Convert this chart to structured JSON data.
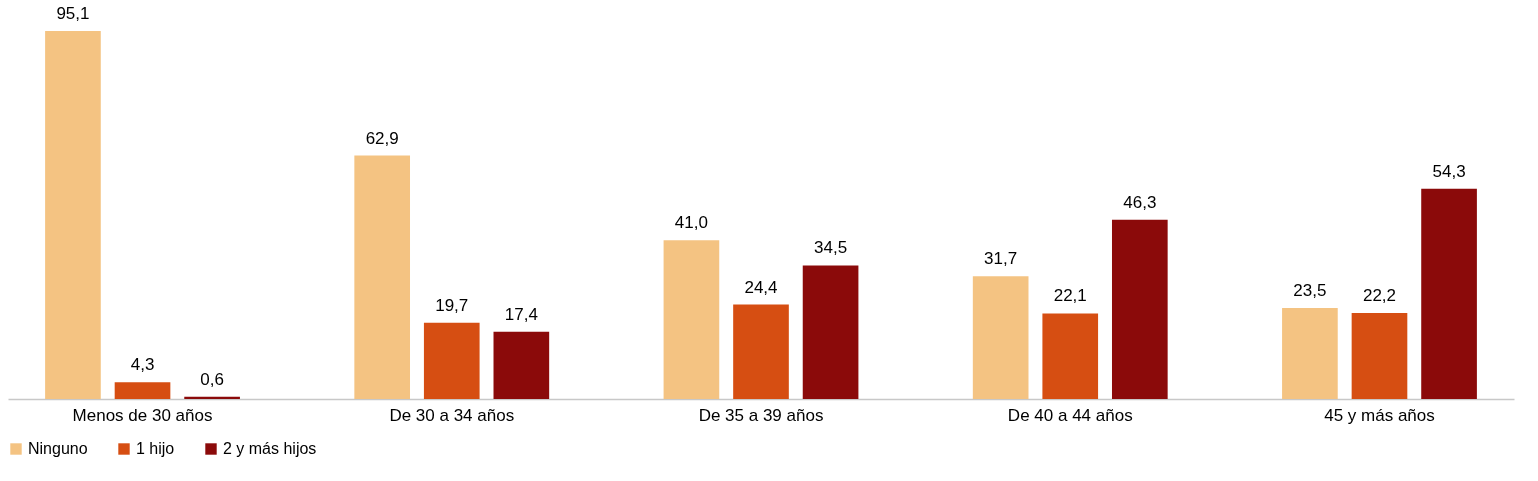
{
  "chart_data": {
    "type": "bar",
    "categories": [
      "Menos de 30 años",
      "De 30 a 34 años",
      "De 35 a 39 años",
      "De 40 a 44 años",
      "45 y más años"
    ],
    "series": [
      {
        "name": "Ninguno",
        "color": "#f4c382",
        "values": [
          95.1,
          62.9,
          41.0,
          31.7,
          23.5
        ],
        "value_labels": [
          "95,1",
          "62,9",
          "41,0",
          "31,7",
          "23,5"
        ]
      },
      {
        "name": "1 hijo",
        "color": "#d64e12",
        "values": [
          4.3,
          19.7,
          24.4,
          22.1,
          22.2
        ],
        "value_labels": [
          "4,3",
          "19,7",
          "24,4",
          "22,1",
          "22,2"
        ]
      },
      {
        "name": "2 y más hijos",
        "color": "#8b0a0a",
        "values": [
          0.6,
          17.4,
          34.5,
          46.3,
          54.3
        ],
        "value_labels": [
          "0,6",
          "17,4",
          "34,5",
          "46,3",
          "54,3"
        ]
      }
    ],
    "legend": "bottom",
    "grid": false
  }
}
